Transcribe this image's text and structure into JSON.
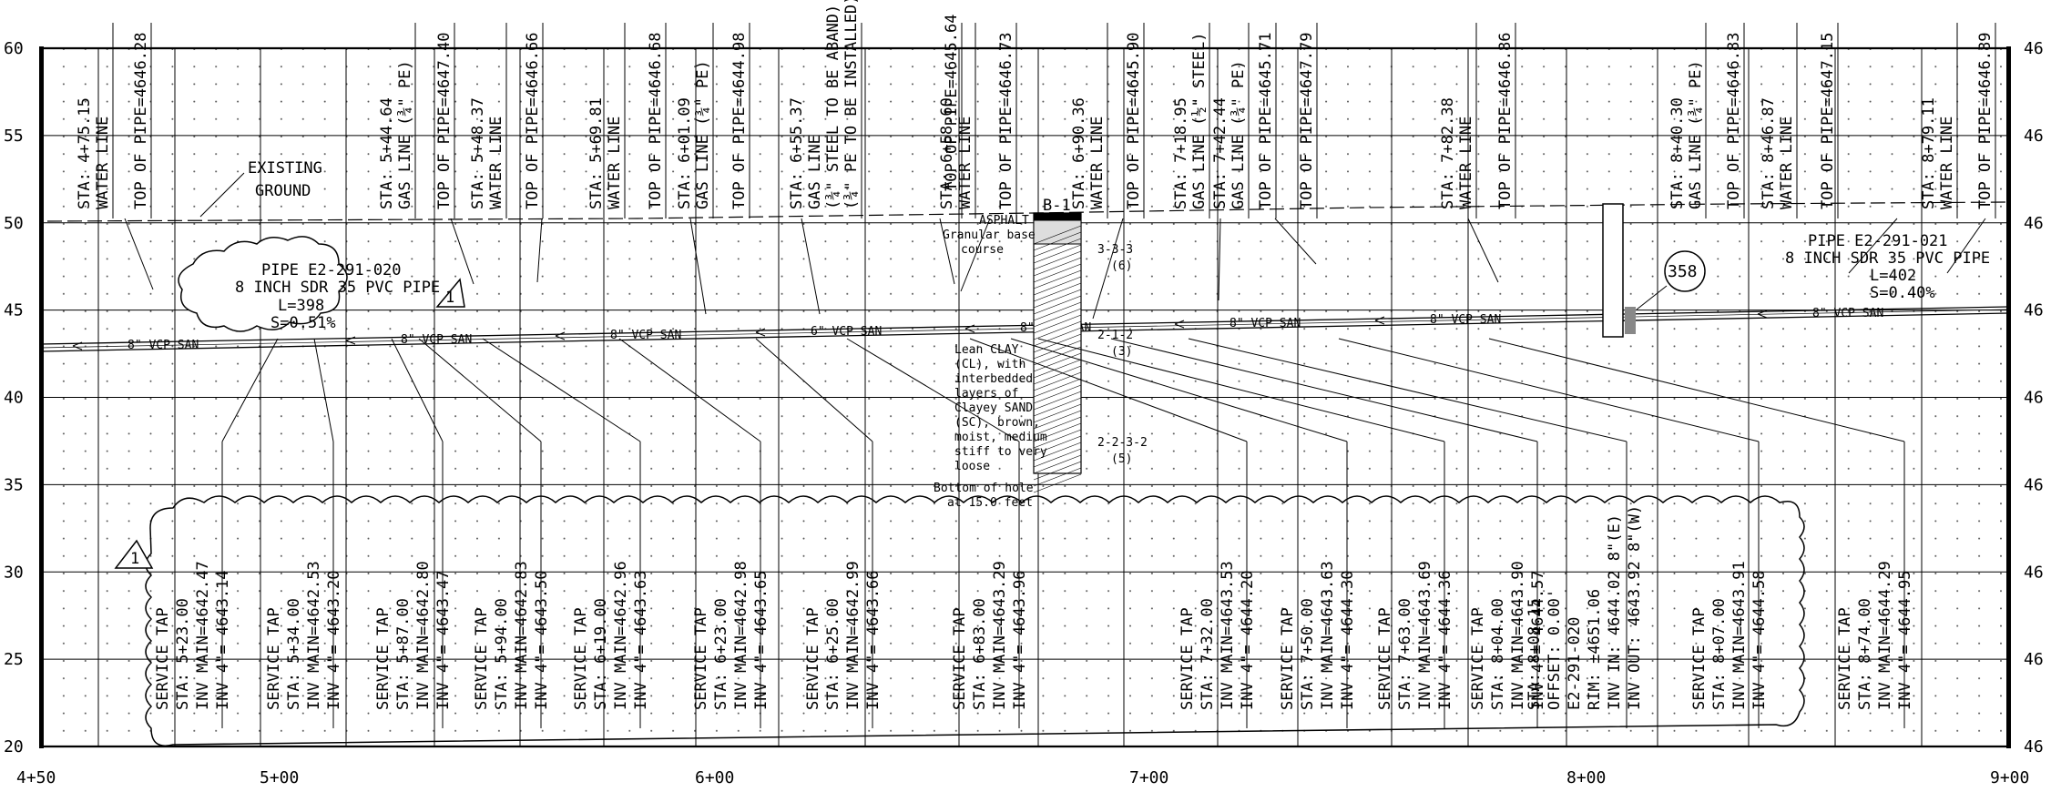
{
  "axes": {
    "left_ticks": [
      "60",
      "55",
      "50",
      "45",
      "40",
      "35",
      "30",
      "25",
      "20"
    ],
    "right_ticks": [
      "46",
      "46",
      "46",
      "46",
      "46",
      "46",
      "46",
      "46",
      "46"
    ],
    "bottom_ticks": [
      "4+50",
      "5+00",
      "6+00",
      "7+00",
      "8+00",
      "9+00"
    ]
  },
  "ground_label": [
    "EXISTING",
    "GROUND"
  ],
  "utilities": [
    [
      "STA: 4+75.15",
      "WATER LINE"
    ],
    [
      "TOP OF PIPE=4646.28"
    ],
    [
      "STA: 5+44.64",
      "GAS LINE (¾\" PE)"
    ],
    [
      "TOP OF PIPE=4647.40"
    ],
    [
      "STA: 5+48.37",
      "WATER LINE"
    ],
    [
      "TOP OF PIPE=4646.66"
    ],
    [
      "STA: 5+69.81",
      "WATER LINE"
    ],
    [
      "TOP OF PIPE=4646.68"
    ],
    [
      "STA: 6+01.09",
      "GAS LINE (¾\" PE)"
    ],
    [
      "TOP OF PIPE=4644.98"
    ],
    [
      "STA: 6+55.37",
      "GAS LINE",
      "(¾\" STEEL TO BE ABAND)",
      "(¾\" PE TO BE INSTALLED)"
    ],
    [
      "TOP OF PIPE=4645.64"
    ],
    [
      "STA: 6+58.60",
      "WATER LINE"
    ],
    [
      "TOP OF PIPE=4646.73"
    ],
    [
      "STA: 6+90.36",
      "WATER LINE"
    ],
    [
      "TOP OF PIPE=4645.90"
    ],
    [
      "STA: 7+18.95",
      "GAS LINE (½\" STEEL)"
    ],
    [
      "STA: 7+42.44",
      "GAS LINE (¾\" PE)"
    ],
    [
      "TOP OF PIPE=4645.71"
    ],
    [
      "TOP OF PIPE=4647.79"
    ],
    [
      "STA: 7+82.38",
      "WATER LINE"
    ],
    [
      "TOP OF PIPE=4646.86"
    ],
    [
      "STA: 8+40.30",
      "GAS LINE (¾\" PE)"
    ],
    [
      "TOP OF PIPE=4646.83"
    ],
    [
      "STA: 8+46.87",
      "WATER LINE"
    ],
    [
      "TOP OF PIPE=4647.15"
    ],
    [
      "STA: 8+79.11",
      "WATER LINE"
    ],
    [
      "TOP OF PIPE=4646.89"
    ]
  ],
  "pipe_left": [
    "PIPE E2-291-020",
    "8 INCH SDR 35 PVC PIPE",
    "L=398",
    "S=0.51%"
  ],
  "pipe_right": [
    "PIPE E2-291-021",
    "8 INCH SDR 35 PVC PIPE",
    "L=402",
    "S=0.40%"
  ],
  "pipe_labels": [
    "8\" VCP SAN",
    "8\" VCP SAN",
    "8\" VCP SAN",
    "6\" VCP SAN",
    "8\" VCP SAN",
    "8\" VCP SAN",
    "8\" VCP SAN",
    "8\" VCP SAN"
  ],
  "revision_marker": "1",
  "manhole_id": "358",
  "boring": {
    "id": "B-1",
    "asphalt": "ASPHALT",
    "base": [
      "Granular base",
      "course"
    ],
    "clay": [
      "Lean CLAY",
      "(CL), with",
      "interbedded",
      "layers of",
      "Clayey SAND",
      "(SC), brown,",
      "moist, medium",
      "stiff to very",
      "loose"
    ],
    "bottom": [
      "Bottom of hole",
      "at 15.0 feet"
    ],
    "blows": [
      [
        "3-3-3",
        "(6)"
      ],
      [
        "2-1-2",
        "(3)"
      ],
      [
        "2-2-3-2",
        "(5)"
      ]
    ]
  },
  "services": [
    [
      "SERVICE TAP",
      "STA: 5+23.00",
      "INV MAIN=4642.47",
      "INV 4\"= 4643.14"
    ],
    [
      "SERVICE TAP",
      "STA: 5+34.00",
      "INV MAIN=4642.53",
      "INV 4\"= 4643.20"
    ],
    [
      "SERVICE TAP",
      "STA: 5+87.00",
      "INV MAIN=4642.80",
      "INV 4\"= 4643.47"
    ],
    [
      "SERVICE TAP",
      "STA: 5+94.00",
      "INV MAIN=4642.83",
      "INV 4\"= 4643.50"
    ],
    [
      "SERVICE TAP",
      "STA: 6+19.00",
      "INV MAIN=4642.96",
      "INV 4\"= 4643.63"
    ],
    [
      "SERVICE TAP",
      "STA: 6+23.00",
      "INV MAIN=4642.98",
      "INV 4\"= 4643.65"
    ],
    [
      "SERVICE TAP",
      "STA: 6+25.00",
      "INV MAIN=4642.99",
      "INV 4\"= 4643.66"
    ],
    [
      "SERVICE TAP",
      "STA: 6+83.00",
      "INV MAIN=4643.29",
      "INV 4\"= 4643.96"
    ],
    [
      "SERVICE TAP",
      "STA: 7+32.00",
      "INV MAIN=4643.53",
      "INV 4\"= 4644.20"
    ],
    [
      "SERVICE TAP",
      "STA: 7+50.00",
      "INV MAIN=4643.63",
      "INV 4\"= 4644.30"
    ],
    [
      "SERVICE TAP",
      "STA: 7+63.00",
      "INV MAIN=4643.69",
      "INV 4\"= 4644.36"
    ],
    [
      "SERVICE TAP",
      "STA: 8+04.00",
      "INV MAIN=4643.90",
      "INV 4\"= 4644.57"
    ],
    [
      "STA: 8+08.15",
      "OFFSET: 0.00'",
      "E2-291-020",
      "RIM: ±4651.06",
      "INV IN: 4644.02 8\"(E)",
      "INV OUT: 4643.92 8\"(W)"
    ],
    [
      "SERVICE TAP",
      "STA: 8+07.00",
      "INV MAIN=4643.91",
      "INV 4\"= 4644.58"
    ],
    [
      "SERVICE TAP",
      "STA: 8+74.00",
      "INV MAIN=4644.29",
      "INV 4\"= 4644.95"
    ]
  ]
}
